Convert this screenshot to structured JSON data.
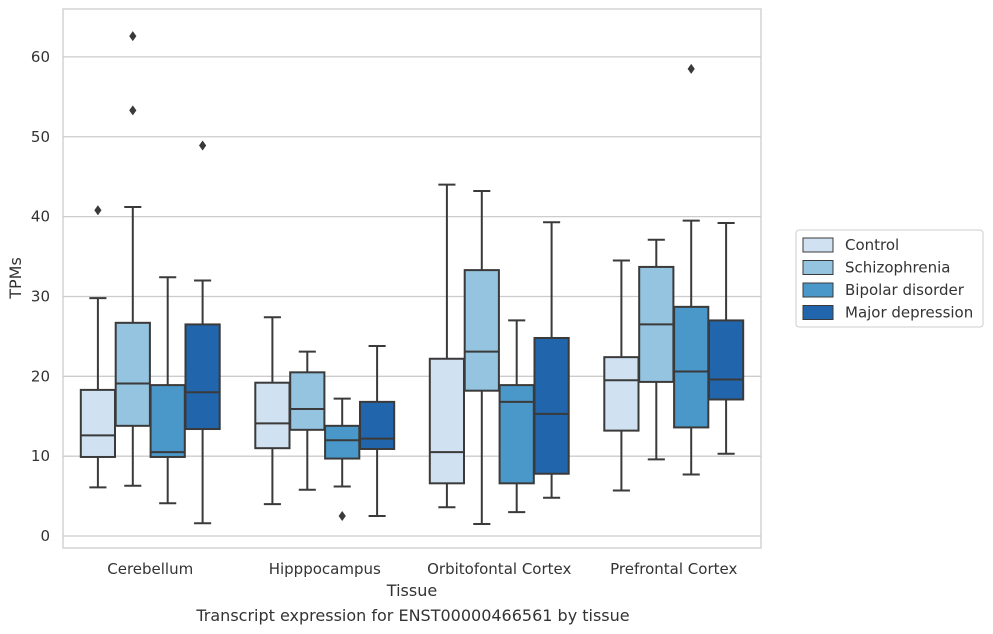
{
  "chart_data": {
    "type": "box",
    "xlabel": "Tissue",
    "ylabel": "TPMs",
    "ylim": [
      -1.5,
      66
    ],
    "yticks": [
      0,
      10,
      20,
      30,
      40,
      50,
      60
    ],
    "grid": true,
    "legend_placement": "right",
    "categories": [
      "Cerebellum",
      "Hipppocampus",
      "Orbitofontal Cortex",
      "Prefrontal Cortex"
    ],
    "series": [
      {
        "name": "Control",
        "color": "#d0e1f2",
        "boxes": [
          {
            "whislo": 6.1,
            "q1": 9.9,
            "median": 12.6,
            "q3": 18.3,
            "whishi": 29.8,
            "fliers": [
              40.8
            ]
          },
          {
            "whislo": 4.0,
            "q1": 11.0,
            "median": 14.1,
            "q3": 19.2,
            "whishi": 27.4,
            "fliers": []
          },
          {
            "whislo": 3.6,
            "q1": 6.6,
            "median": 10.5,
            "q3": 22.2,
            "whishi": 44.0,
            "fliers": []
          },
          {
            "whislo": 5.7,
            "q1": 13.2,
            "median": 19.5,
            "q3": 22.4,
            "whishi": 34.5,
            "fliers": []
          }
        ]
      },
      {
        "name": "Schizophrenia",
        "color": "#94c4df",
        "boxes": [
          {
            "whislo": 6.3,
            "q1": 13.8,
            "median": 19.1,
            "q3": 26.7,
            "whishi": 41.2,
            "fliers": [
              53.3,
              62.6
            ]
          },
          {
            "whislo": 5.8,
            "q1": 13.3,
            "median": 15.9,
            "q3": 20.5,
            "whishi": 23.1,
            "fliers": []
          },
          {
            "whislo": 1.5,
            "q1": 18.2,
            "median": 23.1,
            "q3": 33.3,
            "whishi": 43.2,
            "fliers": []
          },
          {
            "whislo": 9.6,
            "q1": 19.3,
            "median": 26.5,
            "q3": 33.7,
            "whishi": 37.1,
            "fliers": []
          }
        ]
      },
      {
        "name": "Bipolar disorder",
        "color": "#4a98c9",
        "boxes": [
          {
            "whislo": 4.1,
            "q1": 9.9,
            "median": 10.5,
            "q3": 18.9,
            "whishi": 32.4,
            "fliers": []
          },
          {
            "whislo": 6.2,
            "q1": 9.7,
            "median": 12.0,
            "q3": 13.8,
            "whishi": 17.2,
            "fliers": [
              2.5
            ]
          },
          {
            "whislo": 3.0,
            "q1": 6.6,
            "median": 16.8,
            "q3": 18.9,
            "whishi": 27.0,
            "fliers": []
          },
          {
            "whislo": 7.7,
            "q1": 13.6,
            "median": 20.6,
            "q3": 28.7,
            "whishi": 39.5,
            "fliers": [
              58.5
            ]
          }
        ]
      },
      {
        "name": "Major depression",
        "color": "#2166ac",
        "boxes": [
          {
            "whislo": 1.6,
            "q1": 13.4,
            "median": 18.0,
            "q3": 26.5,
            "whishi": 32.0,
            "fliers": [
              48.9
            ]
          },
          {
            "whislo": 2.5,
            "q1": 10.9,
            "median": 12.2,
            "q3": 16.8,
            "whishi": 23.8,
            "fliers": []
          },
          {
            "whislo": 4.8,
            "q1": 7.8,
            "median": 15.3,
            "q3": 24.8,
            "whishi": 39.3,
            "fliers": []
          },
          {
            "whislo": 10.3,
            "q1": 17.1,
            "median": 19.6,
            "q3": 27.0,
            "whishi": 39.2,
            "fliers": []
          }
        ]
      }
    ]
  },
  "caption": "Transcript expression for ENST00000466561 by tissue"
}
